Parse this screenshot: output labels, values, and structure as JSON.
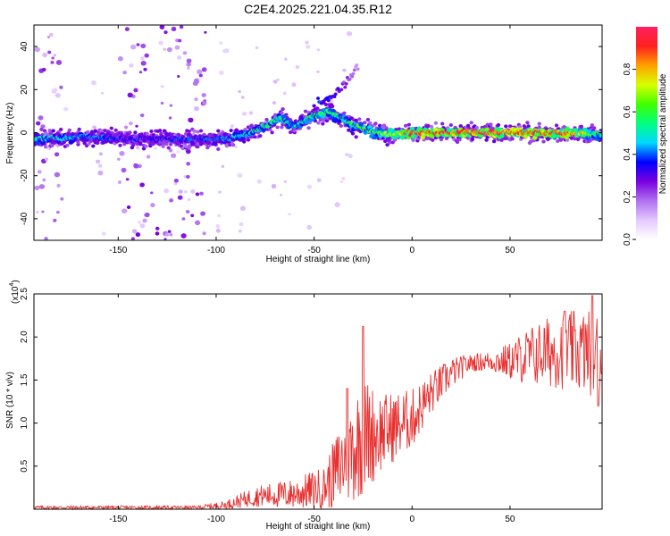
{
  "figure": {
    "title": "C2E4.2025.221.04.35.R12"
  },
  "chart_data": [
    {
      "type": "heatmap",
      "xlabel": "Height of straight line (km)",
      "ylabel": "Frequency (Hz)",
      "xlim": [
        -193,
        97
      ],
      "ylim": [
        -50,
        50
      ],
      "xticks": [
        -150,
        -100,
        -50,
        0,
        50
      ],
      "yticks": [
        -40,
        -20,
        0,
        20,
        40
      ],
      "colorbar": {
        "label": "Normalized spectral amplitude",
        "range": [
          0.0,
          1.0
        ],
        "ticks": [
          "0.0",
          "0.2",
          "0.4",
          "0.6",
          "0.8"
        ],
        "colors": [
          "#ffffff",
          "#e4c8ff",
          "#b070f0",
          "#7a00e0",
          "#0000ff",
          "#00d8ff",
          "#00ff80",
          "#40ff00",
          "#d8ff00",
          "#ffa000",
          "#ff2020",
          "#ff2060"
        ]
      },
      "ridge": [
        {
          "x": -193,
          "y": -3,
          "v": 0.5
        },
        {
          "x": -170,
          "y": -2,
          "v": 0.45
        },
        {
          "x": -140,
          "y": -3,
          "v": 0.35
        },
        {
          "x": -110,
          "y": -3,
          "v": 0.4
        },
        {
          "x": -95,
          "y": -3,
          "v": 0.45
        },
        {
          "x": -85,
          "y": -1,
          "v": 0.5
        },
        {
          "x": -75,
          "y": 3,
          "v": 0.6
        },
        {
          "x": -68,
          "y": 7,
          "v": 0.6
        },
        {
          "x": -60,
          "y": 3,
          "v": 0.5
        },
        {
          "x": -50,
          "y": 8,
          "v": 0.6
        },
        {
          "x": -42,
          "y": 10,
          "v": 0.6
        },
        {
          "x": -35,
          "y": 6,
          "v": 0.55
        },
        {
          "x": -28,
          "y": 3,
          "v": 0.6
        },
        {
          "x": -18,
          "y": 0,
          "v": 0.65
        },
        {
          "x": -10,
          "y": -1,
          "v": 0.7
        },
        {
          "x": 0,
          "y": 0,
          "v": 0.9
        },
        {
          "x": 40,
          "y": 0,
          "v": 0.95
        },
        {
          "x": 80,
          "y": 0,
          "v": 0.9
        },
        {
          "x": 97,
          "y": -1,
          "v": 0.55
        }
      ],
      "side_branch": [
        {
          "x": -45,
          "y": 14,
          "v": 0.35
        },
        {
          "x": -35,
          "y": 22,
          "v": 0.25
        },
        {
          "x": -28,
          "y": 30,
          "v": 0.15
        }
      ],
      "noisy_columns": [
        {
          "x_from": -193,
          "x_to": -175,
          "level": 0.18
        },
        {
          "x_from": -165,
          "x_to": -155,
          "level": 0.06
        },
        {
          "x_from": -150,
          "x_to": -105,
          "level": 0.2
        },
        {
          "x_from": -100,
          "x_to": -30,
          "level": 0.05
        }
      ]
    },
    {
      "type": "line",
      "xlabel": "Height of straight line (km)",
      "ylabel": "SNR (10 * v/v)",
      "y_multiplier": "(x10",
      "y_exponent": "4",
      "xlim": [
        -193,
        97
      ],
      "ylim": [
        0,
        2.5
      ],
      "xticks": [
        -150,
        -100,
        -50,
        0,
        50
      ],
      "yticks": [
        0.5,
        1.0,
        1.5,
        2.0,
        2.5
      ],
      "ytick_labels": [
        "0.5",
        "1.0",
        "1.5",
        "2.0",
        "2.5"
      ],
      "color": "#e83030",
      "envelope": [
        {
          "x": -193,
          "mean": 0.02,
          "amp": 0.02
        },
        {
          "x": -110,
          "mean": 0.02,
          "amp": 0.02
        },
        {
          "x": -95,
          "mean": 0.05,
          "amp": 0.05
        },
        {
          "x": -80,
          "mean": 0.15,
          "amp": 0.12
        },
        {
          "x": -60,
          "mean": 0.18,
          "amp": 0.18
        },
        {
          "x": -45,
          "mean": 0.25,
          "amp": 0.25
        },
        {
          "x": -35,
          "mean": 0.55,
          "amp": 0.55
        },
        {
          "x": -25,
          "mean": 0.85,
          "amp": 0.7
        },
        {
          "x": -15,
          "mean": 0.9,
          "amp": 0.45
        },
        {
          "x": 0,
          "mean": 1.05,
          "amp": 0.35
        },
        {
          "x": 10,
          "mean": 1.35,
          "amp": 0.25
        },
        {
          "x": 20,
          "mean": 1.58,
          "amp": 0.18
        },
        {
          "x": 30,
          "mean": 1.7,
          "amp": 0.1
        },
        {
          "x": 40,
          "mean": 1.72,
          "amp": 0.12
        },
        {
          "x": 50,
          "mean": 1.72,
          "amp": 0.22
        },
        {
          "x": 60,
          "mean": 1.78,
          "amp": 0.35
        },
        {
          "x": 75,
          "mean": 1.85,
          "amp": 0.45
        },
        {
          "x": 90,
          "mean": 1.82,
          "amp": 0.5
        },
        {
          "x": 97,
          "mean": 1.8,
          "amp": 0.5
        }
      ],
      "spikes": [
        {
          "x": -25,
          "y": 2.12
        },
        {
          "x": -33,
          "y": 1.4
        },
        {
          "x": 78,
          "y": 2.3
        },
        {
          "x": 92,
          "y": 2.48
        },
        {
          "x": 95,
          "y": 1.2
        }
      ]
    }
  ]
}
